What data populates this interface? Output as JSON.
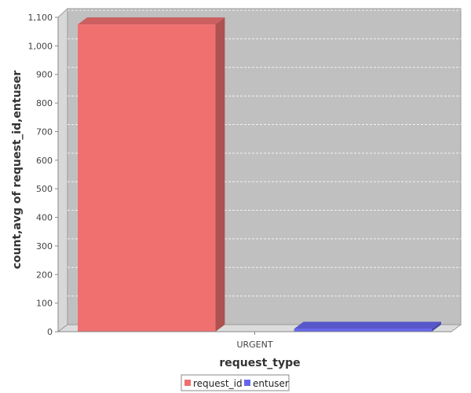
{
  "chart_data": {
    "type": "bar",
    "categories": [
      "URGENT"
    ],
    "series": [
      {
        "name": "request_id",
        "values": [
          1075
        ],
        "color": "#f07070"
      },
      {
        "name": "entuser",
        "values": [
          10
        ],
        "color": "#6666ee"
      }
    ],
    "xlabel": "request_type",
    "ylabel": "count,avg of request_id,entuser",
    "ylim": [
      0,
      1100
    ],
    "yticks": [
      "0",
      "100",
      "200",
      "300",
      "400",
      "500",
      "600",
      "700",
      "800",
      "900",
      "1,000",
      "1,100"
    ],
    "grid": true,
    "legend_position": "bottom-center",
    "plot_background": "#c0c0c0"
  }
}
